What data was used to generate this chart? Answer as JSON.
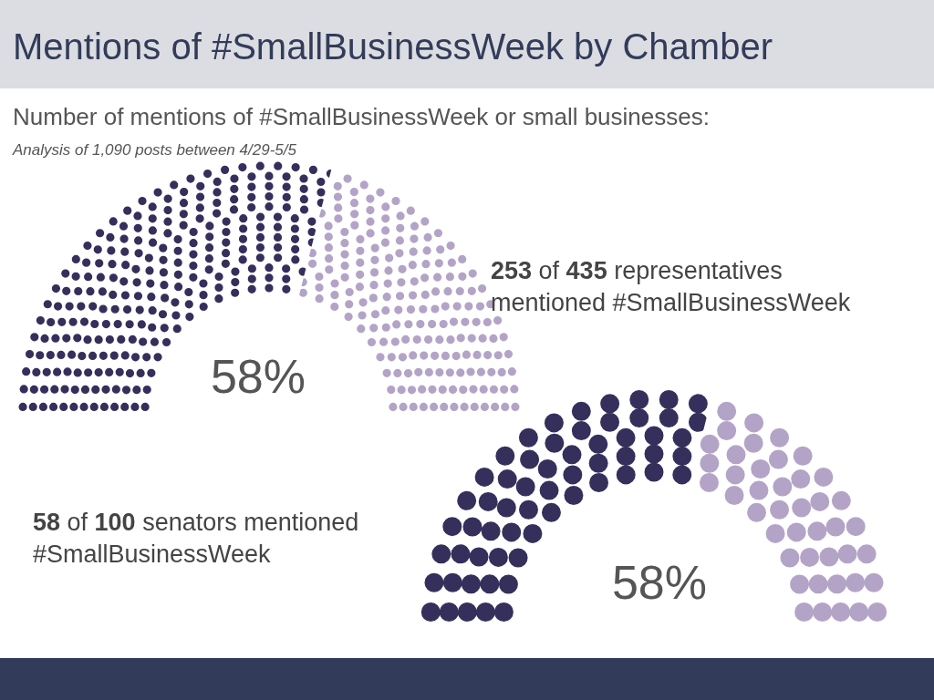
{
  "chart_data": [
    {
      "type": "donut",
      "title": "Mentions of #SmallBusinessWeek by Chamber",
      "subtitle": "Number of mentions of #SmallBusinessWeek or small businesses:",
      "categories": [
        null,
        null
      ],
      "values": [
        58,
        42
      ],
      "colors": [
        "#352f5b",
        "#b3a4c7"
      ],
      "annotations": [
        "Analysis of 1,090 posts between 4/29-5/5",
        "253 of 435 representatives mentioned #SmallBusinessWeek",
        "58%"
      ]
    },
    {
      "type": "donut",
      "categories": [
        null,
        null
      ],
      "values": [
        58,
        42
      ],
      "colors": [
        "#352f5b",
        "#b3a4c7"
      ],
      "annotations": [
        "58 of 100 senators mentioned #SmallBusinessWeek",
        "58%"
      ]
    }
  ]
}
